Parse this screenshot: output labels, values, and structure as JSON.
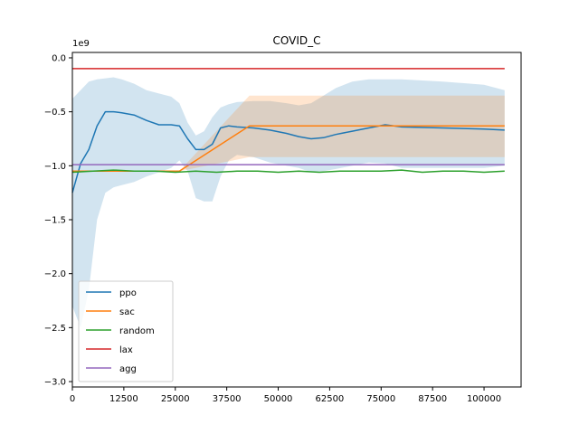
{
  "chart_data": {
    "type": "line",
    "title": "COVID_C",
    "xlabel": "",
    "ylabel": "",
    "y_offset_label": "1e9",
    "xlim": [
      0,
      109000
    ],
    "ylim": [
      -3.05,
      0.05
    ],
    "x_ticks": [
      0,
      12500,
      25000,
      37500,
      50000,
      62500,
      75000,
      87500,
      100000
    ],
    "y_ticks": [
      0.0,
      -0.5,
      -1.0,
      -1.5,
      -2.0,
      -2.5,
      -3.0
    ],
    "y_tick_labels": [
      "0.0",
      "−0.5",
      "−1.0",
      "−1.5",
      "−2.0",
      "−2.5",
      "−3.0"
    ],
    "legend_position": "lower-left",
    "grid": false,
    "series": [
      {
        "name": "ppo",
        "color": "#1f77b4",
        "x": [
          0,
          2000,
          4000,
          6000,
          8000,
          10000,
          12000,
          15000,
          18000,
          21000,
          24000,
          26000,
          28000,
          30000,
          32000,
          34000,
          36000,
          38000,
          40000,
          44000,
          48000,
          52000,
          55000,
          58000,
          61000,
          64000,
          68000,
          72000,
          76000,
          80000,
          90000,
          100000,
          105000
        ],
        "y": [
          -1.25,
          -0.98,
          -0.85,
          -0.63,
          -0.5,
          -0.5,
          -0.51,
          -0.53,
          -0.58,
          -0.62,
          -0.62,
          -0.63,
          -0.75,
          -0.85,
          -0.85,
          -0.8,
          -0.65,
          -0.63,
          -0.64,
          -0.65,
          -0.67,
          -0.7,
          -0.73,
          -0.75,
          -0.74,
          -0.71,
          -0.68,
          -0.65,
          -0.62,
          -0.64,
          -0.65,
          -0.66,
          -0.67
        ],
        "band_upper": [
          -0.38,
          -0.3,
          -0.22,
          -0.2,
          -0.19,
          -0.18,
          -0.2,
          -0.24,
          -0.3,
          -0.33,
          -0.36,
          -0.42,
          -0.6,
          -0.72,
          -0.68,
          -0.55,
          -0.46,
          -0.43,
          -0.41,
          -0.4,
          -0.4,
          -0.42,
          -0.44,
          -0.42,
          -0.35,
          -0.28,
          -0.22,
          -0.2,
          -0.2,
          -0.2,
          -0.22,
          -0.25,
          -0.3
        ],
        "band_lower": [
          -2.3,
          -2.5,
          -2.15,
          -1.5,
          -1.25,
          -1.2,
          -1.18,
          -1.15,
          -1.1,
          -1.06,
          -1.02,
          -0.95,
          -1.05,
          -1.3,
          -1.33,
          -1.33,
          -1.1,
          -0.95,
          -0.9,
          -0.92,
          -0.97,
          -1.0,
          -1.02,
          -1.06,
          -1.05,
          -1.03,
          -1.0,
          -0.97,
          -0.98,
          -1.02,
          -1.02,
          -1.02,
          -1.0
        ]
      },
      {
        "name": "sac",
        "color": "#ff7f0e",
        "x": [
          0,
          26000,
          43000,
          105000
        ],
        "y": [
          -1.05,
          -1.05,
          -0.63,
          -0.63
        ],
        "band_upper": [
          -1.05,
          -1.05,
          -0.35,
          -0.35
        ],
        "band_lower": [
          -1.05,
          -1.05,
          -0.92,
          -0.92
        ]
      },
      {
        "name": "random",
        "color": "#2ca02c",
        "x": [
          0,
          5000,
          10000,
          15000,
          20000,
          25000,
          30000,
          35000,
          40000,
          45000,
          50000,
          55000,
          60000,
          65000,
          70000,
          75000,
          80000,
          85000,
          90000,
          95000,
          100000,
          105000
        ],
        "y": [
          -1.06,
          -1.05,
          -1.04,
          -1.05,
          -1.05,
          -1.06,
          -1.05,
          -1.06,
          -1.05,
          -1.05,
          -1.06,
          -1.05,
          -1.06,
          -1.05,
          -1.05,
          -1.05,
          -1.04,
          -1.06,
          -1.05,
          -1.05,
          -1.06,
          -1.05
        ]
      },
      {
        "name": "lax",
        "color": "#d62728",
        "x": [
          0,
          105000
        ],
        "y": [
          -0.1,
          -0.1
        ]
      },
      {
        "name": "agg",
        "color": "#9467bd",
        "x": [
          0,
          105000
        ],
        "y": [
          -0.99,
          -0.99
        ]
      }
    ]
  }
}
